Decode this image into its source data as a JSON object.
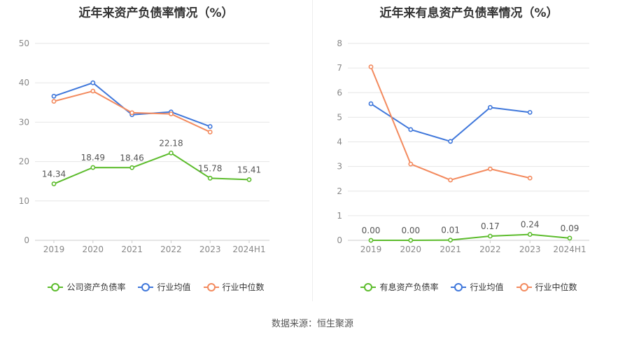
{
  "footer": {
    "source": "数据来源：恒生聚源"
  },
  "chart_data": [
    {
      "type": "line",
      "title": "近年来资产负债率情况（%）",
      "categories": [
        "2019",
        "2020",
        "2021",
        "2022",
        "2023",
        "2024H1"
      ],
      "ylim": [
        0,
        50
      ],
      "yticks": [
        0,
        10,
        20,
        30,
        40,
        50
      ],
      "grid": true,
      "legend_position": "bottom",
      "series": [
        {
          "name": "公司资产负债率",
          "color": "#5cbc2c",
          "labeled": true,
          "values": [
            14.34,
            18.49,
            18.46,
            22.18,
            15.78,
            15.41
          ],
          "labels": [
            "14.34",
            "18.49",
            "18.46",
            "22.18",
            "15.78",
            "15.41"
          ]
        },
        {
          "name": "行业均值",
          "color": "#3f77db",
          "labeled": false,
          "values": [
            36.6,
            40.0,
            31.9,
            32.6,
            28.9,
            null
          ]
        },
        {
          "name": "行业中位数",
          "color": "#f38a5e",
          "labeled": false,
          "values": [
            35.3,
            37.9,
            32.4,
            32.1,
            27.5,
            null
          ]
        }
      ]
    },
    {
      "type": "line",
      "title": "近年来有息资产负债率情况（%）",
      "categories": [
        "2019",
        "2020",
        "2021",
        "2022",
        "2023",
        "2024H1"
      ],
      "ylim": [
        0,
        8
      ],
      "yticks": [
        0,
        1,
        2,
        3,
        4,
        5,
        6,
        7,
        8
      ],
      "grid": true,
      "legend_position": "bottom",
      "series": [
        {
          "name": "有息资产负债率",
          "color": "#5cbc2c",
          "labeled": true,
          "values": [
            0.0,
            0.0,
            0.01,
            0.17,
            0.24,
            0.09
          ],
          "labels": [
            "0.00",
            "0.00",
            "0.01",
            "0.17",
            "0.24",
            "0.09"
          ]
        },
        {
          "name": "行业均值",
          "color": "#3f77db",
          "labeled": false,
          "values": [
            5.55,
            4.5,
            4.02,
            5.4,
            5.2,
            null
          ]
        },
        {
          "name": "行业中位数",
          "color": "#f38a5e",
          "labeled": false,
          "values": [
            7.05,
            3.1,
            2.45,
            2.9,
            2.53,
            null
          ]
        }
      ]
    }
  ]
}
